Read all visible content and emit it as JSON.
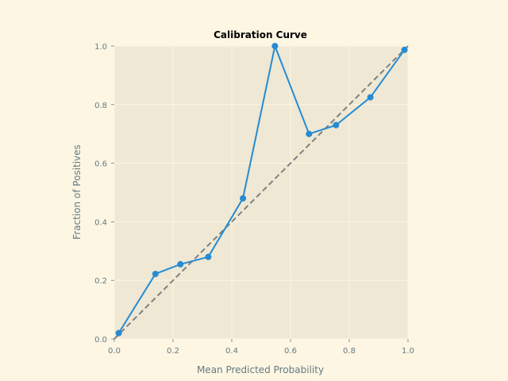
{
  "colors": {
    "page_background": "#fdf6e3",
    "plot_background": "#eee8d5",
    "grid": "#fdf6e3",
    "tick_text": "#657b83",
    "series_line": "#268bd2",
    "reference_line": "#808080"
  },
  "chart_data": {
    "type": "line",
    "title": "Calibration Curve",
    "xlabel": "Mean Predicted Probability",
    "ylabel": "Fraction of Positives",
    "xlim": [
      0,
      1
    ],
    "ylim": [
      0,
      1
    ],
    "xticks": [
      "0.0",
      "0.2",
      "0.4",
      "0.6",
      "0.8",
      "1.0"
    ],
    "yticks": [
      "0.0",
      "0.2",
      "0.4",
      "0.6",
      "0.8",
      "1.0"
    ],
    "grid": true,
    "legend": "none",
    "series": [
      {
        "style": "solid-with-markers",
        "x": [
          0.015,
          0.14,
          0.225,
          0.32,
          0.438,
          0.547,
          0.663,
          0.755,
          0.872,
          0.988
        ],
        "y": [
          0.02,
          0.222,
          0.255,
          0.28,
          0.48,
          1.0,
          0.7,
          0.73,
          0.825,
          0.987
        ]
      },
      {
        "style": "dashed",
        "x": [
          0,
          1
        ],
        "y": [
          0,
          1
        ]
      }
    ]
  }
}
